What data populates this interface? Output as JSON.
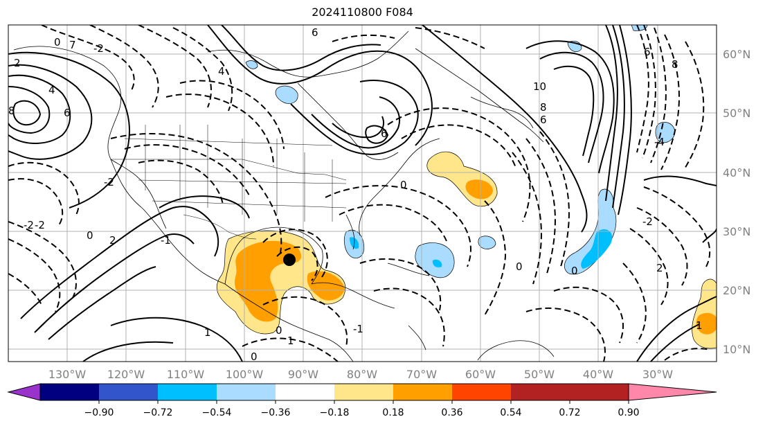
{
  "title": "2024110800 F084",
  "lon_labels": [
    "130°W",
    "120°W",
    "110°W",
    "100°W",
    "90°W",
    "80°W",
    "70°W",
    "60°W",
    "50°W",
    "40°W",
    "30°W"
  ],
  "lat_labels": [
    "60°N",
    "50°N",
    "40°N",
    "30°N",
    "20°N",
    "10°N"
  ],
  "colorbar": {
    "ticks": [
      "−0.90",
      "−0.72",
      "−0.54",
      "−0.36",
      "−0.18",
      "0.18",
      "0.36",
      "0.54",
      "0.72",
      "0.90"
    ],
    "colors": [
      "#9933cc",
      "#000080",
      "#3355cc",
      "#00bfff",
      "#aadcff",
      "#ffffff",
      "#ffe68a",
      "#ffa000",
      "#ff4400",
      "#b22222",
      "#ff88aa"
    ]
  },
  "contour_labels": [
    "0",
    "7",
    "-2",
    "2",
    "8",
    "6",
    "4",
    "-2",
    "-2",
    "2",
    "0",
    "-2",
    "1",
    "-1",
    "0",
    "6",
    "4",
    "6",
    "0",
    "1",
    "0",
    "10",
    "8",
    "6",
    "6",
    "8",
    "-2",
    "2",
    "0",
    "0",
    "-4",
    "-1",
    "1"
  ],
  "marker": "black-dot"
}
